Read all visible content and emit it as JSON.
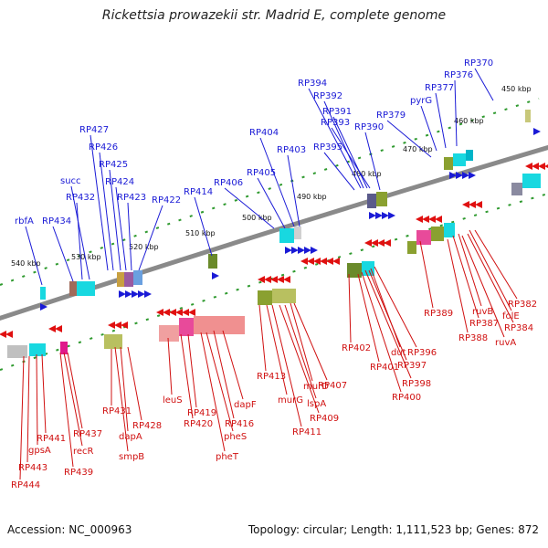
{
  "title": "Rickettsia prowazekii str. Madrid E, complete genome",
  "footer": {
    "accession": "Accession: NC_000963",
    "topology": "Topology: circular; Length: 1,111,523 bp; Genes: 872"
  },
  "colors": {
    "backbone": "#8a8a8a",
    "tick": "#2f9a2f",
    "forward_arrow": "#1a1ad6",
    "reverse_arrow": "#e01010",
    "top_label": "#1a1ad6",
    "bottom_label": "#d01010"
  },
  "kbp_ticks": [
    "450 kbp",
    "460 kbp",
    "470 kbp",
    "480 kbp",
    "490 kbp",
    "500 kbp",
    "510 kbp",
    "520 kbp",
    "530 kbp",
    "540 kbp"
  ],
  "top_labels": [
    "RP370",
    "RP376",
    "RP377",
    "pyrG",
    "RP379",
    "RP390",
    "RP394",
    "RP392",
    "RP391",
    "RP393",
    "RP395",
    "RP404",
    "RP403",
    "RP405",
    "RP406",
    "RP414",
    "RP422",
    "RP423",
    "RP424",
    "RP425",
    "RP426",
    "RP427",
    "succ",
    "RP432",
    "RP434",
    "rbfA"
  ],
  "bottom_labels": [
    "RP382",
    "folE",
    "ruvB",
    "RP384",
    "RP387",
    "ruvA",
    "RP388",
    "RP389",
    "RP396",
    "dut",
    "RP397",
    "RP398",
    "RP400",
    "RP401",
    "RP402",
    "RP407",
    "murD",
    "lspA",
    "RP409",
    "RP411",
    "murG",
    "RP413",
    "dapF",
    "RP416",
    "pheS",
    "pheT",
    "RP419",
    "RP420",
    "leuS",
    "RP428",
    "dapA",
    "smpB",
    "RP431",
    "RP437",
    "recR",
    "RP439",
    "RP441",
    "gpsA",
    "RP443",
    "RP444"
  ]
}
